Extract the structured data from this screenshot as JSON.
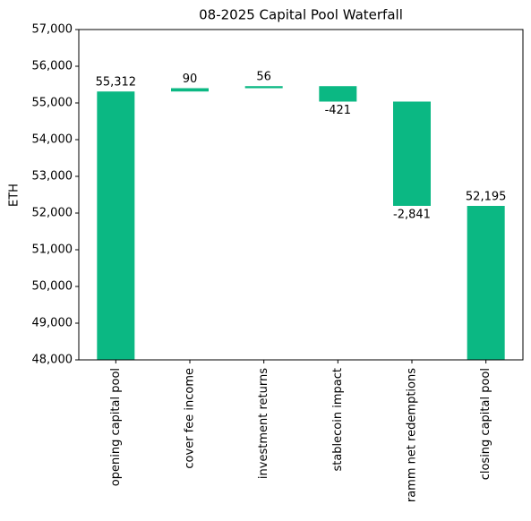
{
  "chart_data": {
    "type": "waterfall",
    "title": "08-2025 Capital Pool Waterfall",
    "y_label": "ETH",
    "categories": [
      "opening capital pool",
      "cover fee income",
      "investment returns",
      "stablecoin impact",
      "ramm net redemptions",
      "closing capital pool"
    ],
    "values": [
      55312,
      90,
      56,
      -421,
      -2841,
      52195
    ],
    "value_labels": [
      "55,312",
      "90",
      "56",
      "-421",
      "-2,841",
      "52,195"
    ],
    "color": "#0bb883",
    "ylim": [
      48000,
      57000
    ],
    "yticks": [
      {
        "value": 48000,
        "label": "48,000"
      },
      {
        "value": 49000,
        "label": "49,000"
      },
      {
        "value": 50000,
        "label": "50,000"
      },
      {
        "value": 51000,
        "label": "51,000"
      },
      {
        "value": 52000,
        "label": "52,000"
      },
      {
        "value": 53000,
        "label": "53,000"
      },
      {
        "value": 54000,
        "label": "54,000"
      },
      {
        "value": 55000,
        "label": "55,000"
      },
      {
        "value": 56000,
        "label": "56,000"
      },
      {
        "value": 57000,
        "label": "57,000"
      }
    ]
  }
}
